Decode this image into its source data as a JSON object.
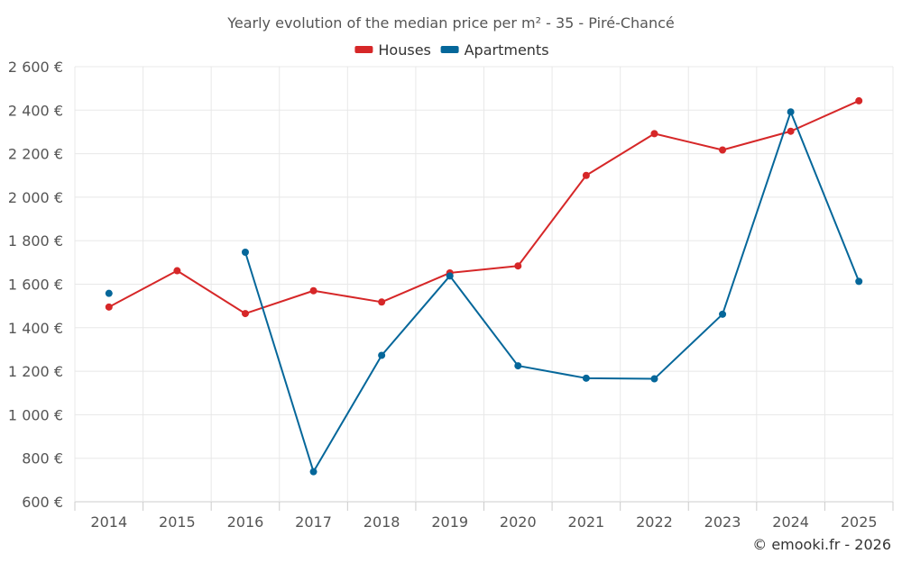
{
  "chart_data": {
    "type": "line",
    "title": "Yearly evolution of the median price per m² - 35 - Piré-Chancé",
    "xlabel": "",
    "ylabel": "",
    "categories": [
      "2014",
      "2015",
      "2016",
      "2017",
      "2018",
      "2019",
      "2020",
      "2021",
      "2022",
      "2023",
      "2024",
      "2025"
    ],
    "y_ticks": [
      "600 €",
      "800 €",
      "1 000 €",
      "1 200 €",
      "1 400 €",
      "1 600 €",
      "1 800 €",
      "2 000 €",
      "2 200 €",
      "2 400 €",
      "2 600 €"
    ],
    "ylim": [
      600,
      2600
    ],
    "grid": true,
    "legend_position": "top-center",
    "series": [
      {
        "name": "Houses",
        "color": "#d62728",
        "values": [
          1495,
          1662,
          1465,
          1570,
          1518,
          1652,
          1684,
          2100,
          2292,
          2217,
          2303,
          2443
        ]
      },
      {
        "name": "Apartments",
        "color": "#05679a",
        "values": [
          1558,
          null,
          1747,
          738,
          1273,
          1638,
          1225,
          1168,
          1165,
          1462,
          2392,
          1613
        ]
      }
    ],
    "credit": "© emooki.fr - 2026"
  }
}
